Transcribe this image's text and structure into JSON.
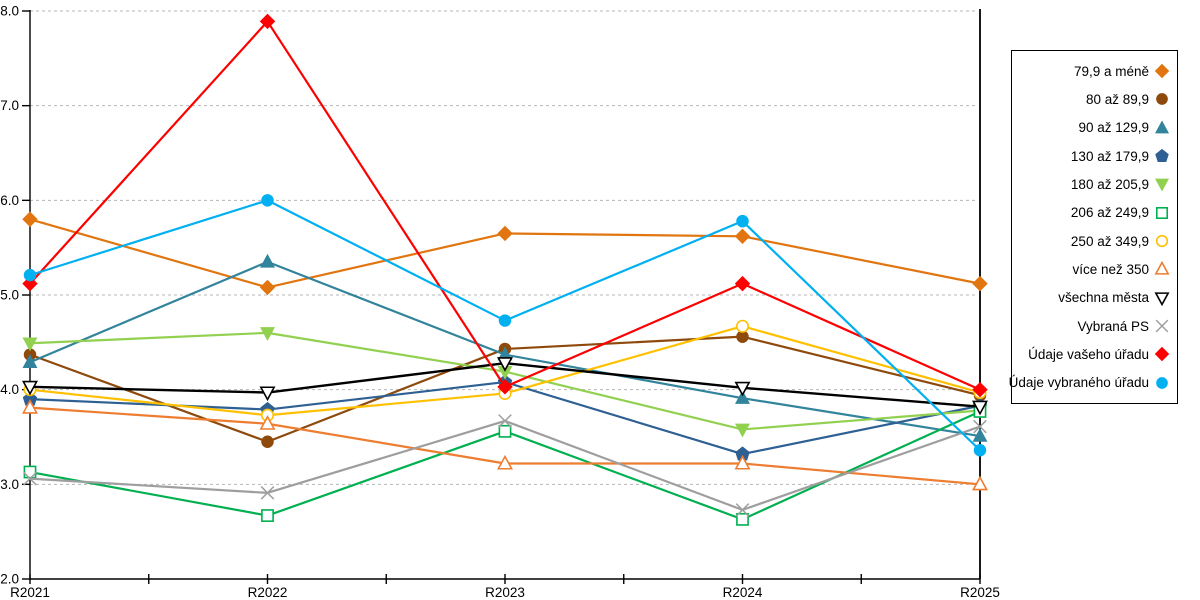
{
  "chart_data": {
    "type": "line",
    "title": "",
    "xlabel": "",
    "ylabel": "",
    "x_categories": [
      "R2021",
      "R2022",
      "R2023",
      "R2024",
      "R2025"
    ],
    "ylim": [
      2.0,
      8.0
    ],
    "ytick_labels": [
      "2.0",
      "3.0",
      "4.0",
      "5.0",
      "6.0",
      "7.0",
      "8.0"
    ],
    "grid": "horizontal-dashed",
    "legend_position": "right-box",
    "axis_color": "#000000",
    "grid_color": "#b5b5b5",
    "series": [
      {
        "name": "79,9 a méně",
        "color": "#E1750F",
        "marker": "diamond",
        "fill": "solid",
        "values": [
          5.8,
          5.08,
          5.65,
          5.62,
          5.12
        ]
      },
      {
        "name": "80 až 89,9",
        "color": "#8E4A0C",
        "marker": "circle",
        "fill": "solid",
        "values": [
          4.37,
          3.45,
          4.43,
          4.56,
          3.94
        ]
      },
      {
        "name": "90 až 129,9",
        "color": "#31849B",
        "marker": "triangle-up",
        "fill": "solid",
        "values": [
          4.29,
          5.35,
          4.37,
          3.91,
          3.51
        ]
      },
      {
        "name": "130 až 179,9",
        "color": "#2E6093",
        "marker": "pentagon",
        "fill": "solid",
        "values": [
          3.9,
          3.79,
          4.08,
          3.32,
          3.83
        ]
      },
      {
        "name": "180 až 205,9",
        "color": "#92D050",
        "marker": "triangle-down",
        "fill": "solid",
        "values": [
          4.49,
          4.6,
          4.19,
          3.58,
          3.78
        ]
      },
      {
        "name": "206 až 249,9",
        "color": "#00B050",
        "marker": "square",
        "fill": "open",
        "values": [
          3.13,
          2.67,
          3.56,
          2.63,
          3.77
        ]
      },
      {
        "name": "250 až 349,9",
        "color": "#FFC000",
        "marker": "circle",
        "fill": "open",
        "values": [
          4.0,
          3.73,
          3.96,
          4.67,
          3.97
        ]
      },
      {
        "name": "více než 350",
        "color": "#ED7D31",
        "marker": "triangle-up",
        "fill": "open",
        "values": [
          3.81,
          3.64,
          3.22,
          3.22,
          3.0
        ]
      },
      {
        "name": "všechna města",
        "color": "#000000",
        "marker": "triangle-down",
        "fill": "open",
        "values": [
          4.03,
          3.97,
          4.28,
          4.02,
          3.82
        ]
      },
      {
        "name": "Vybraná PS",
        "color": "#9E9E9E",
        "marker": "x",
        "fill": "open",
        "values": [
          3.06,
          2.91,
          3.67,
          2.73,
          3.61
        ]
      },
      {
        "name": "Údaje vašeho úřadu",
        "color": "#FE0000",
        "marker": "diamond",
        "fill": "solid",
        "values": [
          5.12,
          7.89,
          4.03,
          5.12,
          4.0
        ]
      },
      {
        "name": "Údaje vybraného úřadu",
        "color": "#00B0F0",
        "marker": "circle",
        "fill": "solid",
        "values": [
          5.21,
          6.0,
          4.73,
          5.78,
          3.36
        ]
      }
    ]
  }
}
